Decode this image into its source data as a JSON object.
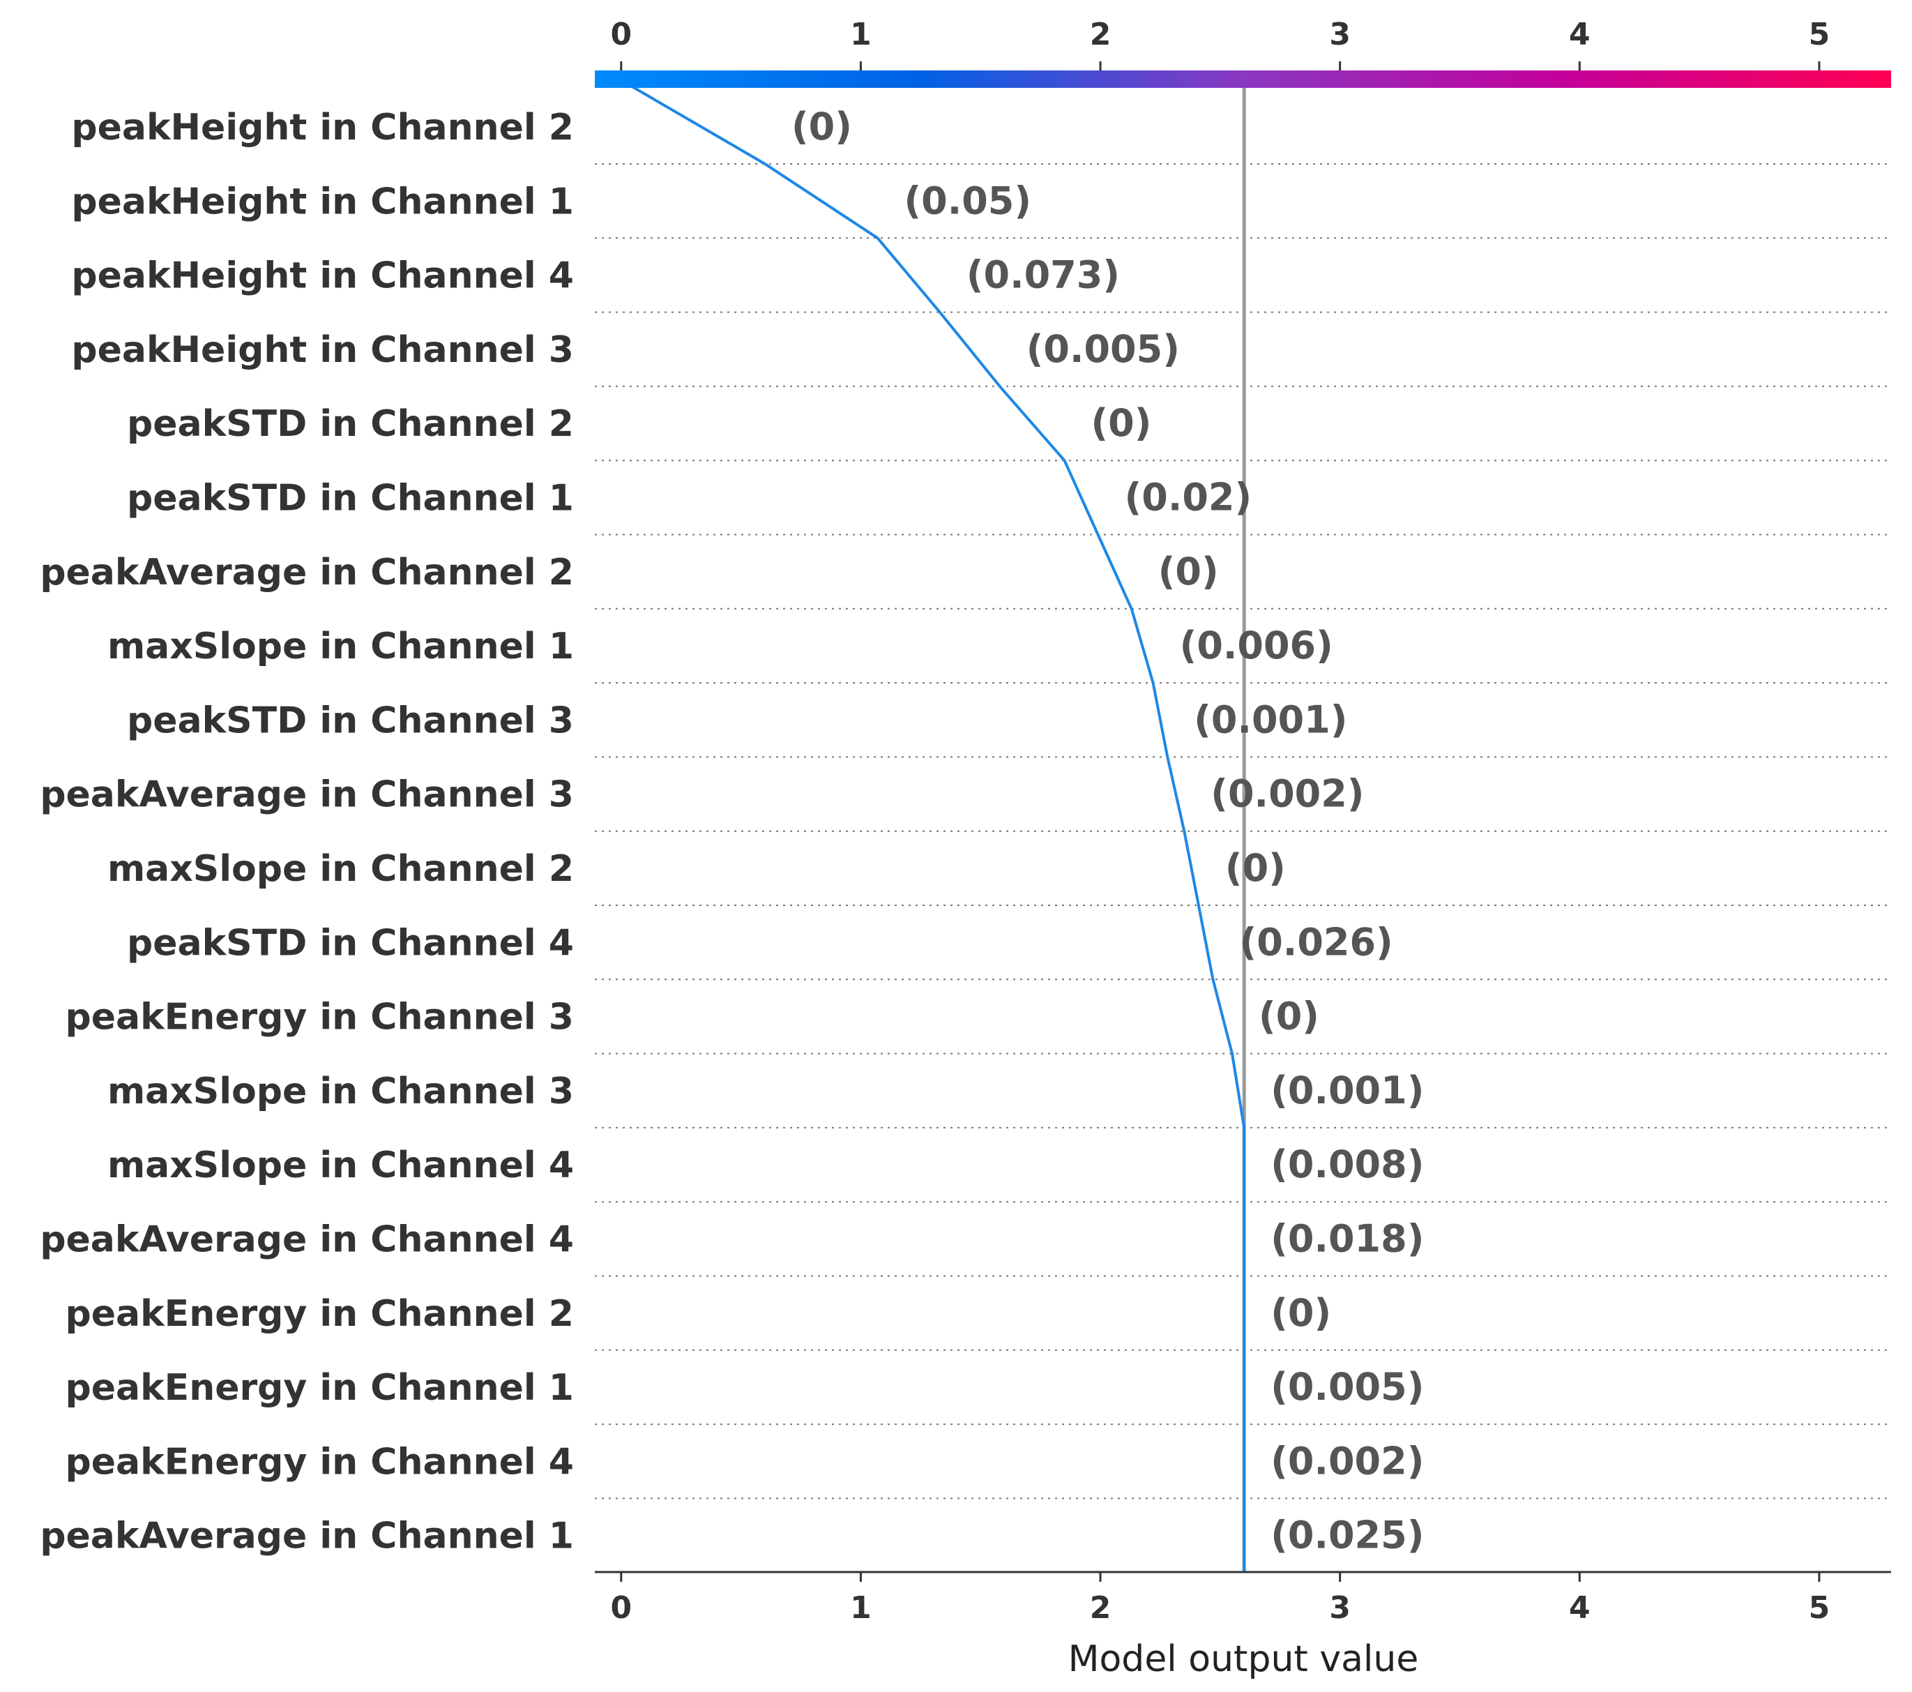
{
  "chart_data": {
    "type": "line",
    "xlabel": "Model output value",
    "xlim": [
      -0.11,
      5.3
    ],
    "x_ticks": [
      0,
      1,
      2,
      3,
      4,
      5
    ],
    "base_value": 0,
    "final_value": 2.6,
    "colorbar": {
      "colors": [
        "#008bfb",
        "#0062e5",
        "#8a38c2",
        "#c4009a",
        "#ff0052"
      ]
    },
    "line_color": "#1e88e5",
    "final_line_color": "#999999",
    "grid": "dotted-horizontal",
    "features": [
      {
        "name": "peakHeight in Channel 2",
        "value_label": "(0)",
        "cum_value": 0.6
      },
      {
        "name": "peakHeight in Channel 1",
        "value_label": "(0.05)",
        "cum_value": 1.07
      },
      {
        "name": "peakHeight in Channel 4",
        "value_label": "(0.073)",
        "cum_value": 1.33
      },
      {
        "name": "peakHeight in Channel 3",
        "value_label": "(0.005)",
        "cum_value": 1.58
      },
      {
        "name": "peakSTD in Channel 2",
        "value_label": "(0)",
        "cum_value": 1.85
      },
      {
        "name": "peakSTD in Channel 1",
        "value_label": "(0.02)",
        "cum_value": 1.99
      },
      {
        "name": "peakAverage in Channel 2",
        "value_label": "(0)",
        "cum_value": 2.13
      },
      {
        "name": "maxSlope in Channel 1",
        "value_label": "(0.006)",
        "cum_value": 2.22
      },
      {
        "name": "peakSTD in Channel 3",
        "value_label": "(0.001)",
        "cum_value": 2.28
      },
      {
        "name": "peakAverage in Channel 3",
        "value_label": "(0.002)",
        "cum_value": 2.35
      },
      {
        "name": "maxSlope in Channel 2",
        "value_label": "(0)",
        "cum_value": 2.41
      },
      {
        "name": "peakSTD in Channel 4",
        "value_label": "(0.026)",
        "cum_value": 2.47
      },
      {
        "name": "peakEnergy in Channel 3",
        "value_label": "(0)",
        "cum_value": 2.55
      },
      {
        "name": "maxSlope in Channel 3",
        "value_label": "(0.001)",
        "cum_value": 2.6
      },
      {
        "name": "maxSlope in Channel 4",
        "value_label": "(0.008)",
        "cum_value": 2.6
      },
      {
        "name": "peakAverage in Channel 4",
        "value_label": "(0.018)",
        "cum_value": 2.6
      },
      {
        "name": "peakEnergy in Channel 2",
        "value_label": "(0)",
        "cum_value": 2.6
      },
      {
        "name": "peakEnergy in Channel 1",
        "value_label": "(0.005)",
        "cum_value": 2.6
      },
      {
        "name": "peakEnergy in Channel 4",
        "value_label": "(0.002)",
        "cum_value": 2.6
      },
      {
        "name": "peakAverage in Channel 1",
        "value_label": "(0.025)",
        "cum_value": 2.6
      }
    ]
  }
}
